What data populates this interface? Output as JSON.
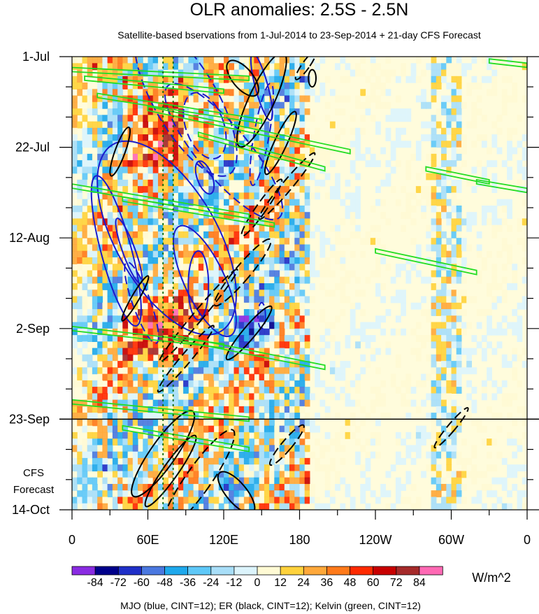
{
  "chart_data": {
    "type": "heatmap",
    "title": "OLR anomalies: 2.5S - 2.5N",
    "subtitle": "Satellite-based bservations from 1-Jul-2014 to 23-Sep-2014 + 21-day CFS Forecast",
    "xlabel": "",
    "ylabel": "",
    "x_ticks": [
      {
        "label": "0",
        "lon": 0
      },
      {
        "label": "60E",
        "lon": 60
      },
      {
        "label": "120E",
        "lon": 120
      },
      {
        "label": "180",
        "lon": 180
      },
      {
        "label": "120W",
        "lon": 240
      },
      {
        "label": "60W",
        "lon": 300
      },
      {
        "label": "0",
        "lon": 360
      }
    ],
    "xlim": [
      0,
      360
    ],
    "y_ticks": [
      {
        "label": "1-Jul",
        "day": 0
      },
      {
        "label": "22-Jul",
        "day": 21
      },
      {
        "label": "12-Aug",
        "day": 42
      },
      {
        "label": "2-Sep",
        "day": 63
      },
      {
        "label": "23-Sep",
        "day": 84
      },
      {
        "label": "14-Oct",
        "day": 105
      }
    ],
    "ylim_days": [
      0,
      105
    ],
    "forecast_start_day": 84,
    "forecast_label_line1": "CFS",
    "forecast_label_line2": "Forecast",
    "reference_lon": [
      72,
      80
    ],
    "colorbar": {
      "unit": "W/m^2",
      "boundaries": [
        "-84",
        "-72",
        "-60",
        "-48",
        "-36",
        "-24",
        "-12",
        "0",
        "12",
        "24",
        "36",
        "48",
        "60",
        "72",
        "84"
      ],
      "colors": [
        "#8a2be2",
        "#00008b",
        "#1f2fc8",
        "#4a78e0",
        "#1ea8ec",
        "#5ec8f8",
        "#a8def8",
        "#dcf4fc",
        "#fffad4",
        "#ffd23c",
        "#ffa83a",
        "#ff7a1a",
        "#ff2a00",
        "#c80000",
        "#a52a2a",
        "#ff69b4"
      ]
    },
    "contour_legend": "MJO (blue, CINT=12); ER (black, CINT=12); Kelvin (green, CINT=12)",
    "contours": {
      "mjo": {
        "color": "#1a1acc",
        "solid": [
          {
            "lon": 35,
            "day": 45,
            "rlon": 12,
            "rday": 18,
            "rot": -15
          },
          {
            "lon": 45,
            "day": 45,
            "rlon": 5,
            "rday": 8,
            "rot": -20
          },
          {
            "lon": 100,
            "day": 53,
            "rlon": 8,
            "rday": 8,
            "rot": 0
          },
          {
            "lon": 105,
            "day": 52,
            "rlon": 16,
            "rday": 14,
            "rot": -25
          },
          {
            "lon": 75,
            "day": 42,
            "rlon": 40,
            "rday": 25,
            "rot": -30
          },
          {
            "lon": 150,
            "day": 7,
            "rlon": 5,
            "rday": 8,
            "rot": -15
          },
          {
            "lon": 105,
            "day": 28,
            "rlon": 6,
            "rday": 4,
            "rot": -20
          }
        ],
        "dashed": [
          {
            "lon": 55,
            "day": 57,
            "rlon": 7,
            "rday": 10,
            "rot": -20
          },
          {
            "lon": 150,
            "day": 18,
            "rlon": 6,
            "rday": 12,
            "rot": 10
          },
          {
            "lon": 120,
            "day": 22,
            "rlon": 20,
            "rday": 20,
            "rot": -40
          },
          {
            "lon": 90,
            "day": 10,
            "rlon": 25,
            "rday": 20,
            "rot": -30
          },
          {
            "lon": 105,
            "day": 16,
            "rlon": 15,
            "rday": 8,
            "rot": -20
          },
          {
            "lon": 150,
            "day": 60,
            "rlon": 3,
            "rday": 3,
            "rot": 0
          }
        ]
      },
      "er": {
        "color": "#000000",
        "solid": [
          {
            "lon": 135,
            "day": 5,
            "rlon": 8,
            "rday": 5,
            "rot": -40
          },
          {
            "lon": 150,
            "day": 10,
            "rlon": 10,
            "rday": 12,
            "rot": 25
          },
          {
            "lon": 38,
            "day": 22,
            "rlon": 4,
            "rday": 6,
            "rot": 20
          },
          {
            "lon": 165,
            "day": 20,
            "rlon": 5,
            "rday": 8,
            "rot": 25
          },
          {
            "lon": 50,
            "day": 56,
            "rlon": 3,
            "rday": 6,
            "rot": 30
          },
          {
            "lon": 140,
            "day": 64,
            "rlon": 5,
            "rday": 8,
            "rot": 40
          },
          {
            "lon": 72,
            "day": 92,
            "rlon": 10,
            "rday": 12,
            "rot": 35
          },
          {
            "lon": 78,
            "day": 96,
            "rlon": 6,
            "rday": 10,
            "rot": 35
          },
          {
            "lon": 130,
            "day": 101,
            "rlon": 8,
            "rday": 6,
            "rot": -40
          },
          {
            "lon": 190,
            "day": 5,
            "rlon": 3,
            "rday": 2,
            "rot": 0
          }
        ],
        "dashed": [
          {
            "lon": 170,
            "day": 30,
            "rlon": 4,
            "rday": 10,
            "rot": 40
          },
          {
            "lon": 150,
            "day": 35,
            "rlon": 4,
            "rday": 8,
            "rot": 35
          },
          {
            "lon": 135,
            "day": 50,
            "rlon": 6,
            "rday": 10,
            "rot": 40
          },
          {
            "lon": 100,
            "day": 60,
            "rlon": 4,
            "rday": 14,
            "rot": 40
          },
          {
            "lon": 185,
            "day": 2,
            "rlon": 3,
            "rday": 4,
            "rot": 35
          },
          {
            "lon": 100,
            "day": 98,
            "rlon": 10,
            "rday": 14,
            "rot": 35
          },
          {
            "lon": 170,
            "day": 90,
            "rlon": 4,
            "rday": 6,
            "rot": 40
          },
          {
            "lon": 300,
            "day": 86,
            "rlon": 3,
            "rday": 6,
            "rot": 40
          },
          {
            "lon": 90,
            "day": 70,
            "rlon": 4,
            "rday": 10,
            "rot": 40
          }
        ]
      },
      "kelvin": {
        "color": "#22dd22",
        "solid": [
          {
            "lon1": 0,
            "day1": 3,
            "lon2": 140,
            "day2": 5
          },
          {
            "lon1": 10,
            "day1": 5,
            "lon2": 120,
            "day2": 8
          },
          {
            "lon1": 20,
            "day1": 9,
            "lon2": 150,
            "day2": 15
          },
          {
            "lon1": 60,
            "day1": 12,
            "lon2": 220,
            "day2": 22
          },
          {
            "lon1": 100,
            "day1": 18,
            "lon2": 200,
            "day2": 26
          },
          {
            "lon1": 0,
            "day1": 30,
            "lon2": 140,
            "day2": 37
          },
          {
            "lon1": 40,
            "day1": 33,
            "lon2": 160,
            "day2": 39
          },
          {
            "lon1": 0,
            "day1": 63,
            "lon2": 120,
            "day2": 67
          },
          {
            "lon1": 80,
            "day1": 65,
            "lon2": 200,
            "day2": 72
          },
          {
            "lon1": 0,
            "day1": 80,
            "lon2": 140,
            "day2": 84
          },
          {
            "lon1": 40,
            "day1": 86,
            "lon2": 140,
            "day2": 91
          },
          {
            "lon1": 280,
            "day1": 26,
            "lon2": 330,
            "day2": 29
          },
          {
            "lon1": 320,
            "day1": 29,
            "lon2": 360,
            "day2": 31
          },
          {
            "lon1": 240,
            "day1": 45,
            "lon2": 320,
            "day2": 50
          },
          {
            "lon1": 330,
            "day1": 1,
            "lon2": 360,
            "day2": 2
          }
        ]
      }
    }
  }
}
